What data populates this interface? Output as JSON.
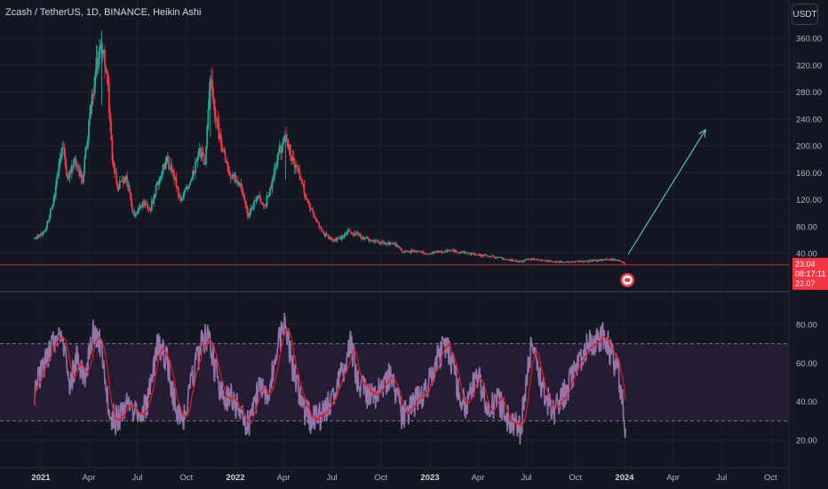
{
  "header": {
    "title": "Zcash / TetherUS, 1D, BINANCE, Heikin Ashi",
    "currency": "USDT"
  },
  "price_badge": {
    "price": "23.04",
    "countdown": "08:17:11",
    "next": "22.07"
  },
  "colors": {
    "background": "#131722",
    "up": "#26a69a",
    "down": "#f23645",
    "rsi_line": "#9575a8",
    "rsi_ma": "#e01b24",
    "rsi_band": "#2a1f3a",
    "arrow": "#5fb8c9"
  },
  "chart_data": [
    {
      "type": "candlestick",
      "title": "Zcash / TetherUS, 1D, BINANCE, Heikin Ashi",
      "x_ticks": [
        "2021",
        "Apr",
        "Jul",
        "Oct",
        "2022",
        "Apr",
        "Jul",
        "Oct",
        "2023",
        "Apr",
        "Jul",
        "Oct",
        "2024",
        "Apr",
        "Jul",
        "Oct"
      ],
      "y_ticks": [
        40,
        80,
        120,
        160,
        200,
        240,
        280,
        320,
        360
      ],
      "ylim": [
        0,
        370
      ],
      "price_path": [
        [
          "2020-12-20",
          62
        ],
        [
          "2021-01-01",
          68
        ],
        [
          "2021-01-10",
          75
        ],
        [
          "2021-01-25",
          120
        ],
        [
          "2021-02-10",
          200
        ],
        [
          "2021-02-20",
          150
        ],
        [
          "2021-03-05",
          175
        ],
        [
          "2021-03-20",
          150
        ],
        [
          "2021-04-05",
          260
        ],
        [
          "2021-04-15",
          320
        ],
        [
          "2021-04-25",
          345
        ],
        [
          "2021-05-05",
          310
        ],
        [
          "2021-05-15",
          175
        ],
        [
          "2021-05-25",
          140
        ],
        [
          "2021-06-10",
          150
        ],
        [
          "2021-06-25",
          95
        ],
        [
          "2021-07-10",
          115
        ],
        [
          "2021-07-25",
          105
        ],
        [
          "2021-08-10",
          150
        ],
        [
          "2021-08-25",
          180
        ],
        [
          "2021-09-05",
          160
        ],
        [
          "2021-09-20",
          120
        ],
        [
          "2021-10-10",
          145
        ],
        [
          "2021-10-25",
          195
        ],
        [
          "2021-11-05",
          175
        ],
        [
          "2021-11-15",
          300
        ],
        [
          "2021-11-25",
          240
        ],
        [
          "2021-12-10",
          185
        ],
        [
          "2021-12-25",
          155
        ],
        [
          "2022-01-10",
          145
        ],
        [
          "2022-01-25",
          95
        ],
        [
          "2022-02-10",
          125
        ],
        [
          "2022-02-25",
          110
        ],
        [
          "2022-03-10",
          145
        ],
        [
          "2022-03-25",
          195
        ],
        [
          "2022-04-05",
          210
        ],
        [
          "2022-04-20",
          175
        ],
        [
          "2022-05-05",
          150
        ],
        [
          "2022-05-15",
          115
        ],
        [
          "2022-05-30",
          95
        ],
        [
          "2022-06-15",
          70
        ],
        [
          "2022-06-30",
          60
        ],
        [
          "2022-07-15",
          62
        ],
        [
          "2022-08-01",
          72
        ],
        [
          "2022-08-15",
          68
        ],
        [
          "2022-09-01",
          62
        ],
        [
          "2022-09-20",
          58
        ],
        [
          "2022-10-10",
          55
        ],
        [
          "2022-11-01",
          52
        ],
        [
          "2022-11-10",
          42
        ],
        [
          "2022-12-01",
          44
        ],
        [
          "2022-12-25",
          40
        ],
        [
          "2023-01-15",
          42
        ],
        [
          "2023-02-15",
          44
        ],
        [
          "2023-03-10",
          40
        ],
        [
          "2023-04-01",
          38
        ],
        [
          "2023-05-01",
          35
        ],
        [
          "2023-06-01",
          30
        ],
        [
          "2023-06-20",
          28
        ],
        [
          "2023-07-10",
          32
        ],
        [
          "2023-08-01",
          30
        ],
        [
          "2023-08-20",
          28
        ],
        [
          "2023-09-15",
          27
        ],
        [
          "2023-10-15",
          28
        ],
        [
          "2023-11-15",
          30
        ],
        [
          "2023-12-10",
          31
        ],
        [
          "2023-12-25",
          29
        ],
        [
          "2024-01-03",
          23.04
        ]
      ],
      "last_price": 23.04,
      "projection_arrow": {
        "from": [
          "2024-01-03",
          23.04
        ],
        "to": [
          "2024-06-01",
          232
        ]
      }
    },
    {
      "type": "line",
      "title": "",
      "y_ticks": [
        20,
        40,
        60,
        80
      ],
      "ylim": [
        10,
        90
      ],
      "bands": [
        30,
        70
      ],
      "rsi_anchors": [
        [
          "2020-12-20",
          45
        ],
        [
          "2021-01-05",
          58
        ],
        [
          "2021-01-25",
          70
        ],
        [
          "2021-02-10",
          74
        ],
        [
          "2021-02-25",
          48
        ],
        [
          "2021-03-10",
          65
        ],
        [
          "2021-03-25",
          50
        ],
        [
          "2021-04-10",
          78
        ],
        [
          "2021-04-25",
          68
        ],
        [
          "2021-05-10",
          32
        ],
        [
          "2021-05-25",
          30
        ],
        [
          "2021-06-15",
          42
        ],
        [
          "2021-06-30",
          33
        ],
        [
          "2021-07-20",
          40
        ],
        [
          "2021-08-10",
          72
        ],
        [
          "2021-08-25",
          62
        ],
        [
          "2021-09-10",
          38
        ],
        [
          "2021-09-25",
          30
        ],
        [
          "2021-10-15",
          55
        ],
        [
          "2021-10-30",
          70
        ],
        [
          "2021-11-10",
          75
        ],
        [
          "2021-11-25",
          55
        ],
        [
          "2021-12-10",
          40
        ],
        [
          "2021-12-25",
          42
        ],
        [
          "2022-01-15",
          32
        ],
        [
          "2022-01-30",
          28
        ],
        [
          "2022-02-15",
          50
        ],
        [
          "2022-03-01",
          42
        ],
        [
          "2022-03-20",
          68
        ],
        [
          "2022-04-05",
          80
        ],
        [
          "2022-04-20",
          55
        ],
        [
          "2022-05-10",
          35
        ],
        [
          "2022-05-25",
          30
        ],
        [
          "2022-06-10",
          33
        ],
        [
          "2022-06-30",
          40
        ],
        [
          "2022-07-20",
          55
        ],
        [
          "2022-08-05",
          70
        ],
        [
          "2022-08-20",
          48
        ],
        [
          "2022-09-10",
          42
        ],
        [
          "2022-09-30",
          46
        ],
        [
          "2022-10-20",
          55
        ],
        [
          "2022-11-10",
          32
        ],
        [
          "2022-11-30",
          38
        ],
        [
          "2022-12-20",
          45
        ],
        [
          "2023-01-15",
          62
        ],
        [
          "2023-02-01",
          70
        ],
        [
          "2023-02-20",
          50
        ],
        [
          "2023-03-10",
          36
        ],
        [
          "2023-03-30",
          55
        ],
        [
          "2023-04-20",
          35
        ],
        [
          "2023-05-10",
          40
        ],
        [
          "2023-05-30",
          30
        ],
        [
          "2023-06-20",
          25
        ],
        [
          "2023-07-10",
          70
        ],
        [
          "2023-07-30",
          48
        ],
        [
          "2023-08-20",
          34
        ],
        [
          "2023-09-10",
          44
        ],
        [
          "2023-09-30",
          55
        ],
        [
          "2023-10-20",
          68
        ],
        [
          "2023-11-10",
          72
        ],
        [
          "2023-11-25",
          75
        ],
        [
          "2023-12-10",
          62
        ],
        [
          "2023-12-20",
          55
        ],
        [
          "2024-01-03",
          26
        ]
      ]
    }
  ]
}
